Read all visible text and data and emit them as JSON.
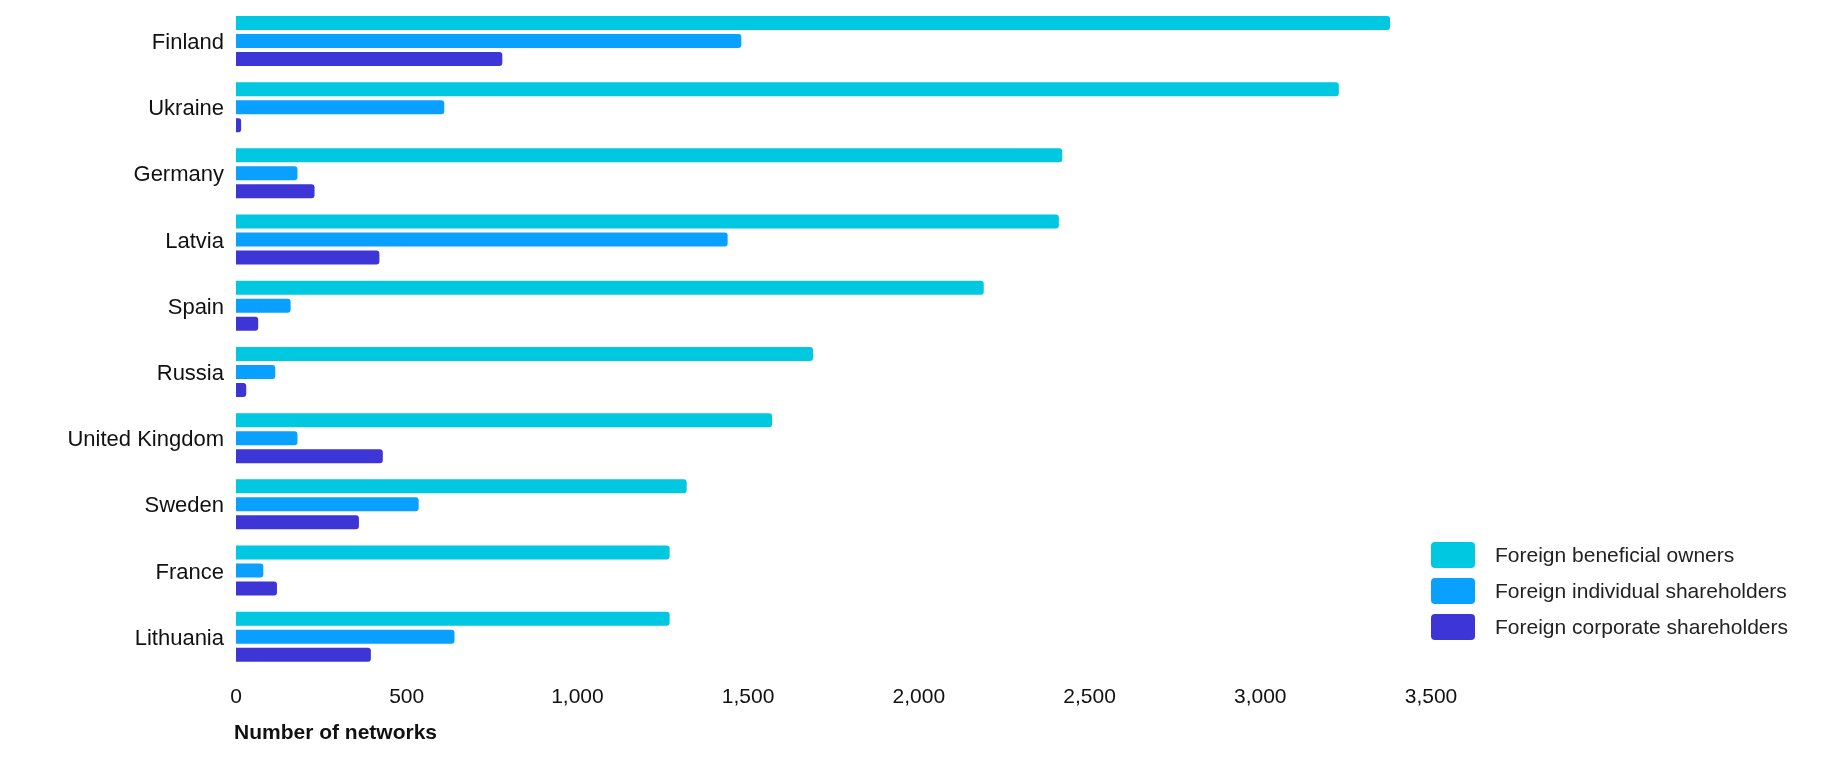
{
  "chart_data": {
    "type": "bar",
    "orientation": "horizontal",
    "xlabel": "Number of networks",
    "categories": [
      "Finland",
      "Ukraine",
      "Germany",
      "Latvia",
      "Spain",
      "Russia",
      "United Kingdom",
      "Sweden",
      "France",
      "Lithuania"
    ],
    "series": [
      {
        "name": "Foreign beneficial owners",
        "color": "#00c8e0",
        "values": [
          3380,
          3230,
          2420,
          2410,
          2190,
          1690,
          1570,
          1320,
          1270,
          1270
        ]
      },
      {
        "name": "Foreign individual shareholders",
        "color": "#0aa0ff",
        "values": [
          1480,
          610,
          180,
          1440,
          160,
          115,
          180,
          535,
          80,
          640
        ]
      },
      {
        "name": "Foreign corporate shareholders",
        "color": "#3d35d6",
        "values": [
          780,
          15,
          230,
          420,
          65,
          30,
          430,
          360,
          120,
          395
        ]
      }
    ],
    "xlim": [
      0,
      3500
    ],
    "xticks": [
      0,
      {
        "value": 500,
        "label": "500"
      },
      {
        "value": 1000,
        "label": "1,000"
      },
      {
        "value": 1500,
        "label": "1,500"
      },
      {
        "value": 2000,
        "label": "2,000"
      },
      {
        "value": 2500,
        "label": "2,500"
      },
      {
        "value": 3000,
        "label": "3,000"
      },
      {
        "value": 3500,
        "label": "3,500"
      }
    ],
    "grid": false,
    "legend": "bottom right"
  }
}
